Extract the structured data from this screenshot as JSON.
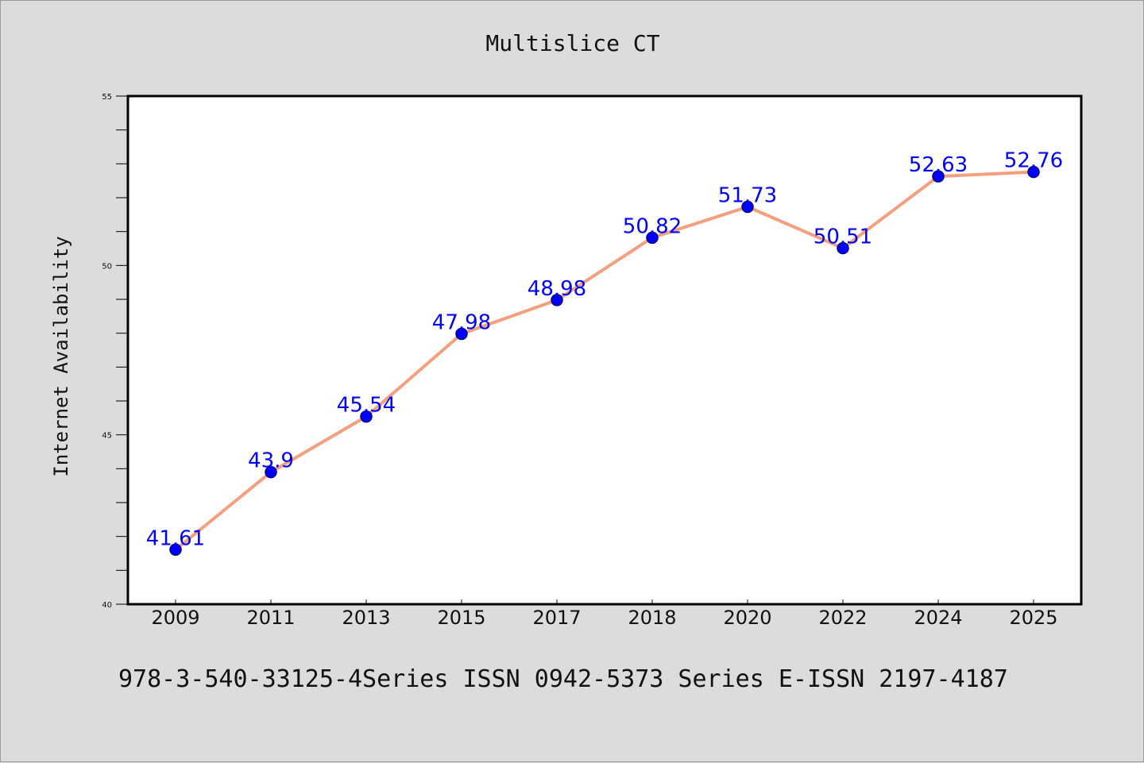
{
  "chart_data": {
    "type": "line",
    "title": "Multislice CT",
    "xlabel": "",
    "ylabel": "Internet Availability",
    "footer": "978-3-540-33125-4Series ISSN 0942-5373 Series E-ISSN 2197-4187",
    "ylim": [
      40,
      55
    ],
    "yticks": [
      "40",
      "45",
      "50",
      "55"
    ],
    "grid": false,
    "categories": [
      "2009",
      "2011",
      "2013",
      "2015",
      "2017",
      "2018",
      "2020",
      "2022",
      "2024",
      "2025"
    ],
    "series": [
      {
        "values": [
          41.61,
          43.9,
          45.54,
          47.98,
          48.98,
          50.82,
          51.73,
          50.51,
          52.63,
          52.76
        ],
        "labels": [
          "41.61",
          "43.9",
          "45.54",
          "47.98",
          "48.98",
          "50.82",
          "51.73",
          "50.51",
          "52.63",
          "52.76"
        ]
      }
    ],
    "colors": {
      "line": "#f4a07f",
      "marker": "#0000ff",
      "marker_edge": "#000080",
      "data_label": "#0000ff",
      "plot_bg": "#ffffff",
      "page_bg": "#dcdcdc"
    }
  }
}
